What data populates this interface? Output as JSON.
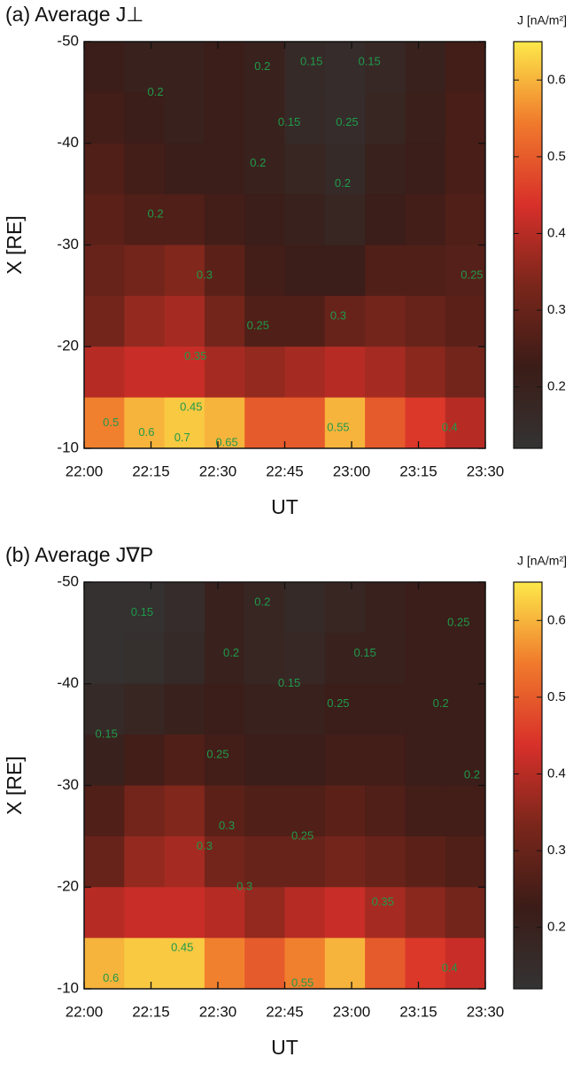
{
  "chart_data": [
    {
      "type": "heatmap",
      "title": "(a) Average J⊥",
      "x_label": "UT",
      "y_label": "X [RE]",
      "colorbar_label": "J [nA/m²]",
      "xlim": [
        0,
        90
      ],
      "xticks": [
        {
          "value": 0,
          "label": "22:00"
        },
        {
          "value": 15,
          "label": "22:15"
        },
        {
          "value": 30,
          "label": "22:30"
        },
        {
          "value": 45,
          "label": "22:45"
        },
        {
          "value": 60,
          "label": "23:00"
        },
        {
          "value": 75,
          "label": "23:15"
        },
        {
          "value": 90,
          "label": "23:30"
        }
      ],
      "ylim": [
        -50,
        -10
      ],
      "yticks": [
        -50,
        -40,
        -30,
        -20,
        -10
      ],
      "clim": [
        0.12,
        0.65
      ],
      "cticks": [
        0.2,
        0.3,
        0.4,
        0.5,
        0.6
      ],
      "colors": [
        "#333333",
        "#3b1c17",
        "#7a261b",
        "#d8302a",
        "#f07a2c",
        "#fde84a"
      ],
      "xbins": [
        0,
        9,
        18,
        27,
        36,
        45,
        54,
        63,
        72,
        81,
        90
      ],
      "ybins": [
        -50,
        -45,
        -40,
        -35,
        -30,
        -25,
        -20,
        -15,
        -10
      ],
      "z": [
        [
          0.22,
          0.2,
          0.2,
          0.22,
          0.2,
          0.16,
          0.15,
          0.17,
          0.2,
          0.24
        ],
        [
          0.24,
          0.22,
          0.2,
          0.22,
          0.2,
          0.16,
          0.15,
          0.18,
          0.21,
          0.25
        ],
        [
          0.26,
          0.24,
          0.22,
          0.22,
          0.2,
          0.18,
          0.16,
          0.2,
          0.22,
          0.25
        ],
        [
          0.28,
          0.26,
          0.26,
          0.24,
          0.22,
          0.2,
          0.18,
          0.22,
          0.24,
          0.26
        ],
        [
          0.3,
          0.32,
          0.34,
          0.28,
          0.24,
          0.22,
          0.22,
          0.26,
          0.26,
          0.27
        ],
        [
          0.32,
          0.36,
          0.38,
          0.32,
          0.26,
          0.26,
          0.3,
          0.32,
          0.3,
          0.28
        ],
        [
          0.4,
          0.42,
          0.42,
          0.38,
          0.36,
          0.38,
          0.4,
          0.38,
          0.35,
          0.32
        ],
        [
          0.55,
          0.6,
          0.62,
          0.6,
          0.5,
          0.5,
          0.6,
          0.5,
          0.45,
          0.4
        ]
      ],
      "annotations": [
        {
          "text": "0.2",
          "x": 16,
          "y": -45
        },
        {
          "text": "0.2",
          "x": 40,
          "y": -47.5
        },
        {
          "text": "0.15",
          "x": 51,
          "y": -48
        },
        {
          "text": "0.15",
          "x": 64,
          "y": -48
        },
        {
          "text": "0.2",
          "x": 39,
          "y": -38
        },
        {
          "text": "0.15",
          "x": 46,
          "y": -42
        },
        {
          "text": "0.25",
          "x": 59,
          "y": -42
        },
        {
          "text": "0.2",
          "x": 58,
          "y": -36
        },
        {
          "text": "0.2",
          "x": 16,
          "y": -33
        },
        {
          "text": "0.3",
          "x": 27,
          "y": -27
        },
        {
          "text": "0.25",
          "x": 39,
          "y": -22
        },
        {
          "text": "0.3",
          "x": 57,
          "y": -23
        },
        {
          "text": "0.25",
          "x": 87,
          "y": -27
        },
        {
          "text": "0.35",
          "x": 25,
          "y": -19
        },
        {
          "text": "0.45",
          "x": 24,
          "y": -14
        },
        {
          "text": "0.5",
          "x": 6,
          "y": -12.5
        },
        {
          "text": "0.6",
          "x": 14,
          "y": -11.5
        },
        {
          "text": "0.7",
          "x": 22,
          "y": -11
        },
        {
          "text": "0.65",
          "x": 32,
          "y": -10.5
        },
        {
          "text": "0.55",
          "x": 57,
          "y": -12
        },
        {
          "text": "0.4",
          "x": 82,
          "y": -12
        }
      ]
    },
    {
      "type": "heatmap",
      "title": "(b) Average J∇P",
      "x_label": "UT",
      "y_label": "X [RE]",
      "colorbar_label": "J [nA/m²]",
      "xlim": [
        0,
        90
      ],
      "xticks": [
        {
          "value": 0,
          "label": "22:00"
        },
        {
          "value": 15,
          "label": "22:15"
        },
        {
          "value": 30,
          "label": "22:30"
        },
        {
          "value": 45,
          "label": "22:45"
        },
        {
          "value": 60,
          "label": "23:00"
        },
        {
          "value": 75,
          "label": "23:15"
        },
        {
          "value": 90,
          "label": "23:30"
        }
      ],
      "ylim": [
        -50,
        -10
      ],
      "yticks": [
        -50,
        -40,
        -30,
        -20,
        -10
      ],
      "clim": [
        0.12,
        0.65
      ],
      "cticks": [
        0.2,
        0.3,
        0.4,
        0.5,
        0.6
      ],
      "colors": [
        "#333333",
        "#3b1c17",
        "#7a261b",
        "#d8302a",
        "#f07a2c",
        "#fde84a"
      ],
      "xbins": [
        0,
        9,
        18,
        27,
        36,
        45,
        54,
        63,
        72,
        81,
        90
      ],
      "ybins": [
        -50,
        -45,
        -40,
        -35,
        -30,
        -25,
        -20,
        -15,
        -10
      ],
      "z": [
        [
          0.13,
          0.13,
          0.15,
          0.2,
          0.18,
          0.16,
          0.18,
          0.2,
          0.22,
          0.22
        ],
        [
          0.13,
          0.14,
          0.16,
          0.2,
          0.18,
          0.17,
          0.2,
          0.2,
          0.22,
          0.22
        ],
        [
          0.16,
          0.18,
          0.2,
          0.22,
          0.2,
          0.2,
          0.22,
          0.22,
          0.22,
          0.22
        ],
        [
          0.2,
          0.24,
          0.26,
          0.24,
          0.22,
          0.22,
          0.24,
          0.24,
          0.22,
          0.22
        ],
        [
          0.26,
          0.32,
          0.34,
          0.28,
          0.26,
          0.26,
          0.28,
          0.26,
          0.24,
          0.24
        ],
        [
          0.3,
          0.36,
          0.38,
          0.32,
          0.3,
          0.3,
          0.32,
          0.3,
          0.28,
          0.26
        ],
        [
          0.4,
          0.42,
          0.42,
          0.4,
          0.36,
          0.4,
          0.42,
          0.38,
          0.35,
          0.32
        ],
        [
          0.6,
          0.62,
          0.62,
          0.55,
          0.5,
          0.55,
          0.6,
          0.5,
          0.45,
          0.42
        ]
      ],
      "annotations": [
        {
          "text": "0.15",
          "x": 13,
          "y": -47
        },
        {
          "text": "0.2",
          "x": 40,
          "y": -48
        },
        {
          "text": "0.2",
          "x": 33,
          "y": -43
        },
        {
          "text": "0.15",
          "x": 46,
          "y": -40
        },
        {
          "text": "0.15",
          "x": 63,
          "y": -43
        },
        {
          "text": "0.25",
          "x": 57,
          "y": -38
        },
        {
          "text": "0.25",
          "x": 84,
          "y": -46
        },
        {
          "text": "0.2",
          "x": 80,
          "y": -38
        },
        {
          "text": "0.15",
          "x": 5,
          "y": -35
        },
        {
          "text": "0.25",
          "x": 30,
          "y": -33
        },
        {
          "text": "0.2",
          "x": 87,
          "y": -31
        },
        {
          "text": "0.3",
          "x": 32,
          "y": -26
        },
        {
          "text": "0.25",
          "x": 49,
          "y": -25
        },
        {
          "text": "0.3",
          "x": 27,
          "y": -24
        },
        {
          "text": "0.3",
          "x": 36,
          "y": -20
        },
        {
          "text": "0.35",
          "x": 67,
          "y": -18.5
        },
        {
          "text": "0.45",
          "x": 22,
          "y": -14
        },
        {
          "text": "0.6",
          "x": 6,
          "y": -11
        },
        {
          "text": "0.55",
          "x": 49,
          "y": -10.5
        },
        {
          "text": "0.4",
          "x": 82,
          "y": -12
        }
      ]
    }
  ]
}
